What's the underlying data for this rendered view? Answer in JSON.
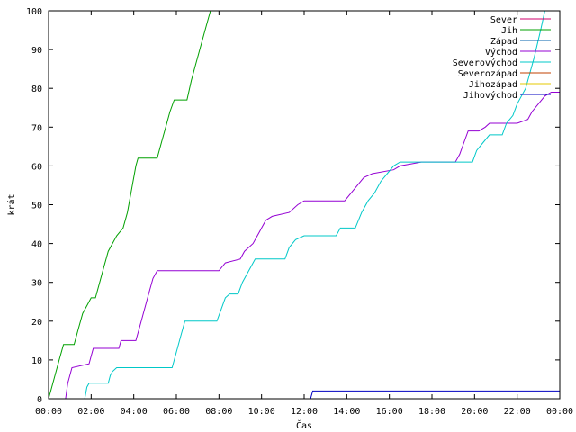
{
  "chart_data": {
    "type": "line",
    "xlabel": "Čas",
    "ylabel": "krát",
    "xlim": [
      0,
      24
    ],
    "ylim": [
      0,
      100
    ],
    "x_ticks": [
      "00:00",
      "02:00",
      "04:00",
      "06:00",
      "08:00",
      "10:00",
      "12:00",
      "14:00",
      "16:00",
      "18:00",
      "20:00",
      "22:00",
      "00:00"
    ],
    "y_ticks": [
      0,
      10,
      20,
      30,
      40,
      50,
      60,
      70,
      80,
      90,
      100
    ],
    "legend_position": "top-right",
    "series": [
      {
        "name": "Sever",
        "color": "#d0006e",
        "points": []
      },
      {
        "name": "Jih",
        "color": "#00a000",
        "points": [
          [
            0,
            0
          ],
          [
            0.1,
            2
          ],
          [
            0.3,
            6
          ],
          [
            0.5,
            10
          ],
          [
            0.7,
            14
          ],
          [
            1.2,
            14
          ],
          [
            1.4,
            18
          ],
          [
            1.6,
            22
          ],
          [
            1.8,
            24
          ],
          [
            2.0,
            26
          ],
          [
            2.2,
            26
          ],
          [
            2.4,
            30
          ],
          [
            2.6,
            34
          ],
          [
            2.8,
            38
          ],
          [
            3.0,
            40
          ],
          [
            3.2,
            42
          ],
          [
            3.5,
            44
          ],
          [
            3.7,
            48
          ],
          [
            3.9,
            54
          ],
          [
            4.1,
            60
          ],
          [
            4.2,
            62
          ],
          [
            5.1,
            62
          ],
          [
            5.3,
            66
          ],
          [
            5.5,
            70
          ],
          [
            5.7,
            74
          ],
          [
            5.9,
            77
          ],
          [
            6.5,
            77
          ],
          [
            6.7,
            82
          ],
          [
            6.9,
            86
          ],
          [
            7.1,
            90
          ],
          [
            7.4,
            96
          ],
          [
            7.6,
            100
          ]
        ]
      },
      {
        "name": "Západ",
        "color": "#0060ad",
        "points": []
      },
      {
        "name": "Východ",
        "color": "#9400d3",
        "points": [
          [
            0.8,
            0
          ],
          [
            0.9,
            4
          ],
          [
            1.1,
            8
          ],
          [
            1.9,
            9
          ],
          [
            2.0,
            11
          ],
          [
            2.1,
            13
          ],
          [
            3.3,
            13
          ],
          [
            3.4,
            15
          ],
          [
            4.1,
            15
          ],
          [
            4.3,
            19
          ],
          [
            4.5,
            23
          ],
          [
            4.7,
            27
          ],
          [
            4.9,
            31
          ],
          [
            5.1,
            33
          ],
          [
            8.0,
            33
          ],
          [
            8.3,
            35
          ],
          [
            9.0,
            36
          ],
          [
            9.2,
            38
          ],
          [
            9.6,
            40
          ],
          [
            9.9,
            43
          ],
          [
            10.2,
            46
          ],
          [
            10.5,
            47
          ],
          [
            11.3,
            48
          ],
          [
            11.7,
            50
          ],
          [
            12.0,
            51
          ],
          [
            13.9,
            51
          ],
          [
            14.2,
            53
          ],
          [
            14.5,
            55
          ],
          [
            14.8,
            57
          ],
          [
            15.2,
            58
          ],
          [
            16.2,
            59
          ],
          [
            16.5,
            60
          ],
          [
            17.5,
            61
          ],
          [
            19.1,
            61
          ],
          [
            19.3,
            63
          ],
          [
            19.5,
            66
          ],
          [
            19.7,
            69
          ],
          [
            20.2,
            69
          ],
          [
            20.5,
            70
          ],
          [
            20.7,
            71
          ],
          [
            22.0,
            71
          ],
          [
            22.5,
            72
          ],
          [
            22.7,
            74
          ],
          [
            23.0,
            76
          ],
          [
            23.3,
            78
          ],
          [
            23.6,
            79
          ],
          [
            24,
            79
          ]
        ]
      },
      {
        "name": "Severovýchod",
        "color": "#00c8c8",
        "points": [
          [
            1.7,
            0
          ],
          [
            1.8,
            3
          ],
          [
            1.9,
            4
          ],
          [
            2.8,
            4
          ],
          [
            2.9,
            6
          ],
          [
            3.0,
            7
          ],
          [
            3.2,
            8
          ],
          [
            5.8,
            8
          ],
          [
            6.0,
            12
          ],
          [
            6.2,
            16
          ],
          [
            6.4,
            20
          ],
          [
            7.9,
            20
          ],
          [
            8.1,
            23
          ],
          [
            8.3,
            26
          ],
          [
            8.5,
            27
          ],
          [
            8.9,
            27
          ],
          [
            9.1,
            30
          ],
          [
            9.3,
            32
          ],
          [
            9.5,
            34
          ],
          [
            9.7,
            36
          ],
          [
            11.1,
            36
          ],
          [
            11.3,
            39
          ],
          [
            11.6,
            41
          ],
          [
            12.0,
            42
          ],
          [
            13.5,
            42
          ],
          [
            13.7,
            44
          ],
          [
            14.4,
            44
          ],
          [
            14.7,
            48
          ],
          [
            15.0,
            51
          ],
          [
            15.3,
            53
          ],
          [
            15.6,
            56
          ],
          [
            15.9,
            58
          ],
          [
            16.2,
            60
          ],
          [
            16.5,
            61
          ],
          [
            19.9,
            61
          ],
          [
            20.1,
            64
          ],
          [
            20.4,
            66
          ],
          [
            20.7,
            68
          ],
          [
            21.3,
            68
          ],
          [
            21.5,
            71
          ],
          [
            21.8,
            73
          ],
          [
            22.0,
            76
          ],
          [
            22.4,
            80
          ],
          [
            22.8,
            88
          ],
          [
            23.1,
            95
          ],
          [
            23.3,
            100
          ]
        ]
      },
      {
        "name": "Severozápad",
        "color": "#c04000",
        "points": []
      },
      {
        "name": "Jihozápad",
        "color": "#e6c800",
        "points": []
      },
      {
        "name": "Jihovýchod",
        "color": "#0000c0",
        "points": [
          [
            12.3,
            0
          ],
          [
            12.4,
            2
          ],
          [
            24,
            2
          ]
        ]
      }
    ]
  }
}
